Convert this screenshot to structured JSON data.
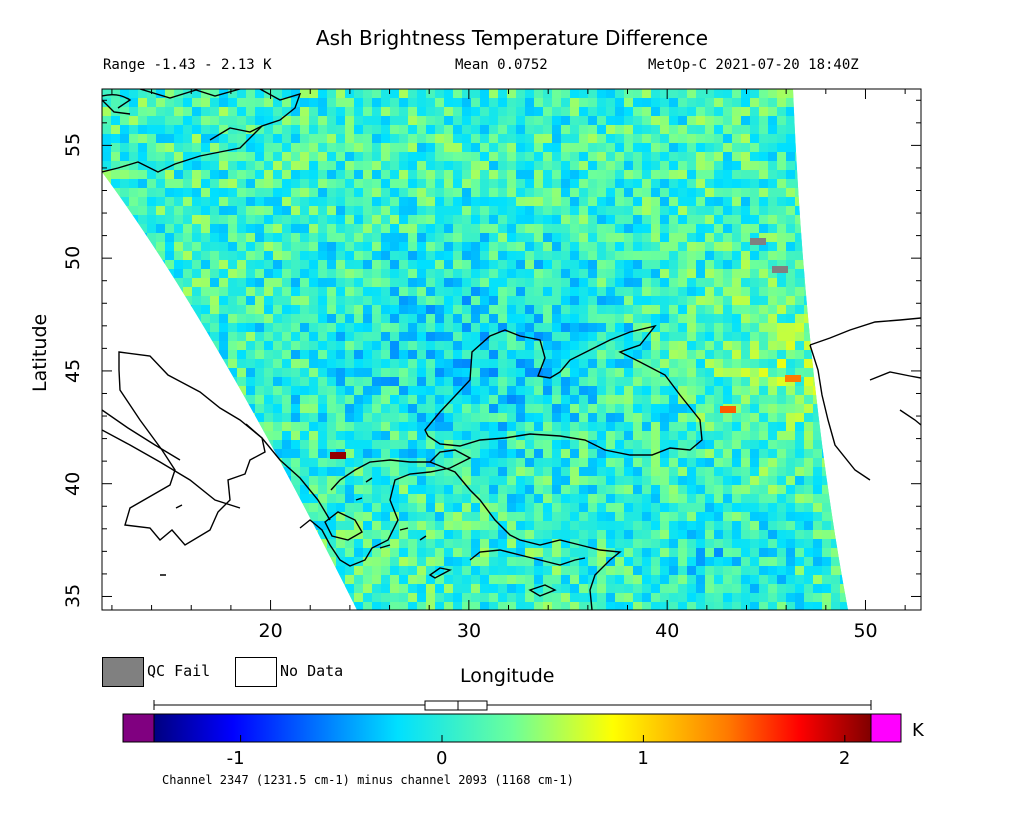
{
  "title": "Ash Brightness Temperature Difference",
  "header": {
    "range": "Range -1.43 - 2.13 K",
    "mean": "Mean 0.0752",
    "satellite": "MetOp-C 2021-07-20 18:40Z"
  },
  "axes": {
    "ylabel": "Latitude",
    "xlabel": "Longitude",
    "xlim": [
      11.5,
      52.8
    ],
    "ylim": [
      34.4,
      57.5
    ],
    "xticks": [
      "20",
      "30",
      "40",
      "50"
    ],
    "yticks": [
      "35",
      "40",
      "45",
      "50",
      "55"
    ]
  },
  "legend": {
    "qc_fail": "QC Fail",
    "no_data": "No Data",
    "qc_color": "#808080"
  },
  "colorbar": {
    "unit": "K",
    "ticks": [
      "-1",
      "0",
      "1",
      "2"
    ],
    "range": [
      -1.43,
      2.13
    ],
    "under_color": "#800080",
    "over_color": "#ff00ff"
  },
  "footer": "Channel 2347 (1231.5 cm-1) minus channel 2093 (1168 cm-1)",
  "chart_data": {
    "type": "heatmap",
    "title": "Ash Brightness Temperature Difference",
    "xlabel": "Longitude",
    "ylabel": "Latitude",
    "xlim": [
      11.5,
      52.8
    ],
    "ylim": [
      34.4,
      57.5
    ],
    "value_range": [
      -1.43,
      2.13
    ],
    "mean": 0.0752,
    "unit": "K"
  }
}
